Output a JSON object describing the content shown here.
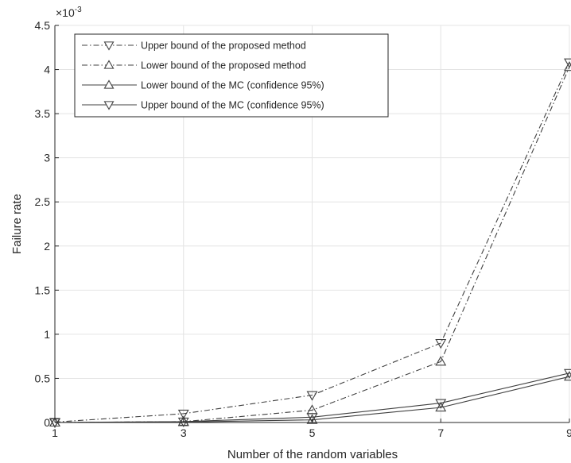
{
  "chart_data": {
    "type": "line",
    "title": "",
    "xlabel": "Number of the random variables",
    "ylabel": "Failure rate",
    "y_exponent_label": "×10",
    "y_exponent_power": "-3",
    "xlim": [
      1,
      9
    ],
    "ylim": [
      0,
      4.5
    ],
    "grid": true,
    "legend_position": "top-left",
    "x_ticks": [
      1,
      3,
      5,
      7,
      9
    ],
    "y_ticks": [
      0,
      0.5,
      1,
      1.5,
      2,
      2.5,
      3,
      3.5,
      4,
      4.5
    ],
    "x_tick_labels": [
      "1",
      "3",
      "5",
      "7",
      "9"
    ],
    "y_tick_labels": [
      "0",
      "0.5",
      "1",
      "1.5",
      "2",
      "2.5",
      "3",
      "3.5",
      "4",
      "4.5"
    ],
    "x": [
      1,
      3,
      5,
      7,
      9
    ],
    "series": [
      {
        "name": "Upper bound of the proposed method",
        "values": [
          0.005,
          0.1,
          0.31,
          0.9,
          4.08
        ],
        "line_style": "dash-dot",
        "marker": "triangle-down",
        "color": "#404040"
      },
      {
        "name": "Lower bound of the proposed method",
        "values": [
          0.0,
          0.01,
          0.14,
          0.69,
          4.03
        ],
        "line_style": "dash-dot",
        "marker": "triangle-up",
        "color": "#404040"
      },
      {
        "name": "Lower bound of the MC (confidence 95%)",
        "values": [
          0.0,
          0.005,
          0.03,
          0.17,
          0.52
        ],
        "line_style": "solid",
        "marker": "triangle-up",
        "color": "#404040"
      },
      {
        "name": "Upper bound of the MC (confidence 95%)",
        "values": [
          0.0,
          0.01,
          0.06,
          0.22,
          0.56
        ],
        "line_style": "solid",
        "marker": "triangle-down",
        "color": "#404040"
      }
    ]
  }
}
